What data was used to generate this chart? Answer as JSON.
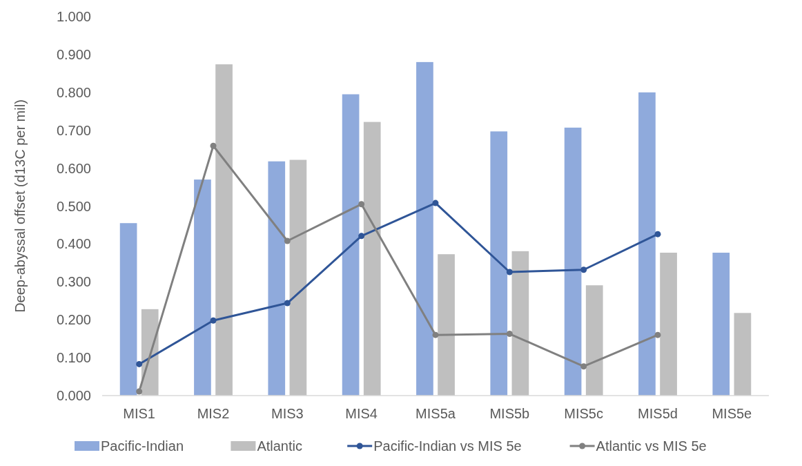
{
  "chart_data": {
    "type": "bar",
    "ylabel": "Deep-abyssal offset (d13C per mil)",
    "categories": [
      "MIS1",
      "MIS2",
      "MIS3",
      "MIS4",
      "MIS5a",
      "MIS5b",
      "MIS5c",
      "MIS5d",
      "MIS5e"
    ],
    "series": [
      {
        "name": "Pacific-Indian",
        "color": "#8faadc",
        "values": [
          0.455,
          0.57,
          0.618,
          0.795,
          0.88,
          0.697,
          0.707,
          0.8,
          0.377
        ]
      },
      {
        "name": "Atlantic",
        "color": "#bfbfbf",
        "values": [
          0.228,
          0.874,
          0.622,
          0.722,
          0.373,
          0.381,
          0.291,
          0.377,
          0.218
        ]
      },
      {
        "name": "Pacific-Indian vs MIS 5e",
        "type": "line",
        "color": "#2f5597",
        "values": [
          0.083,
          0.198,
          0.244,
          0.421,
          0.508,
          0.326,
          0.332,
          0.426,
          null
        ]
      },
      {
        "name": "Atlantic vs MIS 5e",
        "type": "line",
        "color": "#808080",
        "values": [
          0.011,
          0.659,
          0.408,
          0.505,
          0.16,
          0.163,
          0.077,
          0.16,
          null
        ]
      }
    ],
    "ylim": [
      0,
      1
    ],
    "yticks": [
      {
        "value": 0,
        "label": "0.000"
      },
      {
        "value": 0.1,
        "label": "0.100"
      },
      {
        "value": 0.2,
        "label": "0.200"
      },
      {
        "value": 0.3,
        "label": "0.300"
      },
      {
        "value": 0.4,
        "label": "0.400"
      },
      {
        "value": 0.5,
        "label": "0.500"
      },
      {
        "value": 0.6,
        "label": "0.600"
      },
      {
        "value": 0.7,
        "label": "0.700"
      },
      {
        "value": 0.8,
        "label": "0.800"
      },
      {
        "value": 0.9,
        "label": "0.900"
      },
      {
        "value": 1,
        "label": "1.000"
      }
    ],
    "grid": false,
    "legend": "bottom",
    "marker": "circle",
    "line_style": "solid"
  }
}
